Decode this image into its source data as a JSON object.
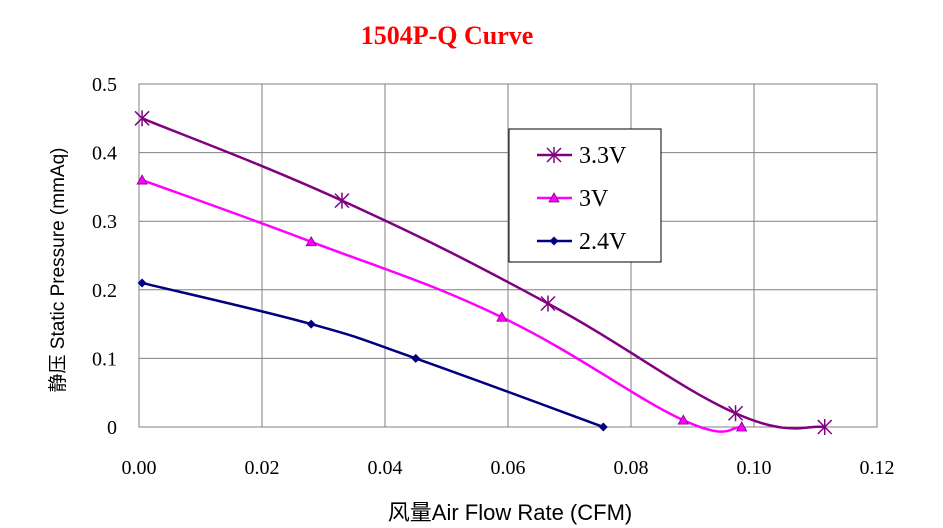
{
  "chart_data": {
    "type": "line",
    "title": "1504P-Q Curve",
    "xlabel": "风量Air Flow Rate (CFM)",
    "ylabel": "静压  Static Pressure (mmAq)",
    "xlim": [
      0,
      0.12
    ],
    "ylim": [
      0,
      0.5
    ],
    "x_ticks": [
      "0.00",
      "0.02",
      "0.04",
      "0.06",
      "0.08",
      "0.10",
      "0.12"
    ],
    "y_ticks": [
      "0",
      "0.1",
      "0.2",
      "0.3",
      "0.4",
      "0.5"
    ],
    "grid": true,
    "legend_position": "upper-center-right",
    "series": [
      {
        "name": "3.3V",
        "color": "#800080",
        "marker": "star",
        "points": [
          [
            0.0005,
            0.45
          ],
          [
            0.033,
            0.33
          ],
          [
            0.0665,
            0.18
          ],
          [
            0.097,
            0.02
          ],
          [
            0.1115,
            0.0
          ]
        ]
      },
      {
        "name": "3V",
        "color": "#ff00ff",
        "marker": "triangle",
        "points": [
          [
            0.0005,
            0.36
          ],
          [
            0.028,
            0.27
          ],
          [
            0.059,
            0.16
          ],
          [
            0.0885,
            0.01
          ],
          [
            0.098,
            0.0
          ]
        ]
      },
      {
        "name": "2.4V",
        "color": "#000080",
        "marker": "diamond",
        "points": [
          [
            0.0005,
            0.21
          ],
          [
            0.028,
            0.15
          ],
          [
            0.045,
            0.1
          ],
          [
            0.0755,
            0.0
          ]
        ]
      }
    ]
  }
}
